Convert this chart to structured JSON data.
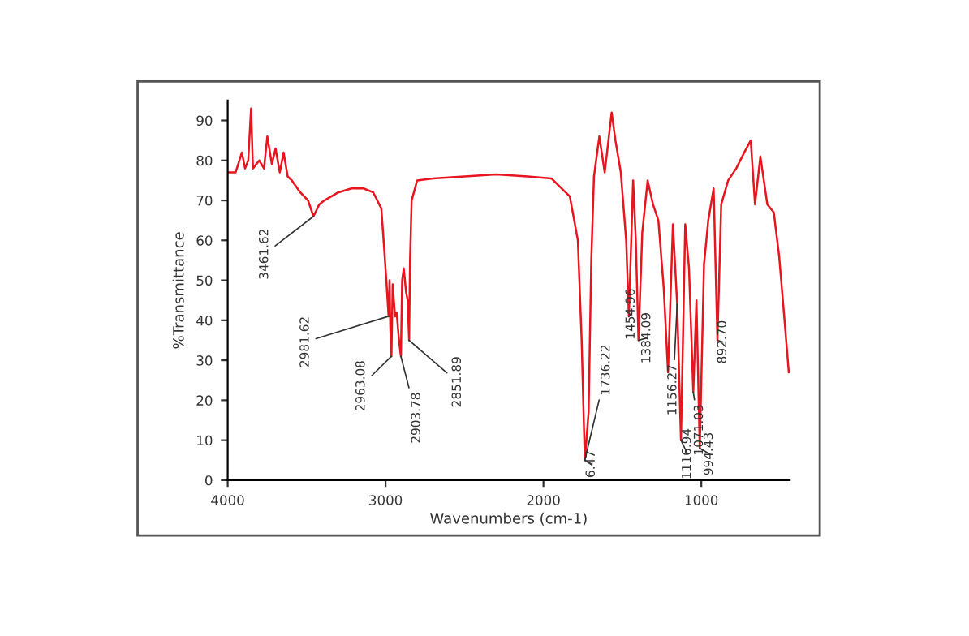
{
  "chart_data": {
    "type": "line",
    "xlabel": "Wavenumbers (cm-1)",
    "ylabel": "%Transmittance",
    "xlim": [
      4000,
      440
    ],
    "ylim": [
      0,
      95
    ],
    "xticks": [
      4000,
      3000,
      2000,
      1000
    ],
    "yticks": [
      0,
      10,
      20,
      30,
      40,
      50,
      60,
      70,
      80,
      90
    ],
    "grid": false,
    "marker": "none",
    "line_style": "solid",
    "series": [
      {
        "color": "#e8141e",
        "x": [
          4000,
          3950,
          3910,
          3890,
          3870,
          3852,
          3840,
          3800,
          3770,
          3749,
          3720,
          3697,
          3670,
          3646,
          3620,
          3594,
          3540,
          3491,
          3457,
          3420,
          3388,
          3300,
          3216,
          3140,
          3078,
          3027,
          3009,
          2992,
          2981,
          2975,
          2970,
          2963,
          2955,
          2940,
          2930,
          2915,
          2903,
          2895,
          2885,
          2870,
          2860,
          2851,
          2845,
          2835,
          2800,
          2700,
          2500,
          2300,
          2100,
          1950,
          1833,
          1782,
          1758,
          1738,
          1714,
          1697,
          1680,
          1646,
          1612,
          1568,
          1544,
          1510,
          1476,
          1459,
          1432,
          1415,
          1398,
          1374,
          1340,
          1306,
          1272,
          1238,
          1211,
          1180,
          1153,
          1129,
          1102,
          1078,
          1051,
          1031,
          1010,
          983,
          956,
          922,
          898,
          874,
          830,
          779,
          728,
          687,
          660,
          626,
          582,
          541,
          507,
          473,
          446
        ],
        "values": [
          77,
          77,
          82,
          78,
          80,
          93,
          78,
          80,
          78,
          86,
          79,
          83,
          77,
          82,
          76,
          75,
          72,
          70,
          66,
          69,
          70,
          72,
          73,
          73,
          72,
          68,
          58,
          48,
          41,
          50,
          38,
          31,
          49,
          41,
          42,
          35,
          31,
          50,
          53,
          47,
          45,
          35,
          55,
          70,
          75,
          75.5,
          76,
          76.5,
          76,
          75.5,
          71,
          60,
          35,
          5,
          17,
          55,
          76,
          86,
          77,
          92,
          85,
          77,
          60,
          41,
          75,
          60,
          35,
          62,
          75,
          69,
          65,
          48,
          27,
          64,
          44,
          10,
          64,
          53,
          22,
          45,
          8,
          54,
          65,
          73,
          35,
          69,
          75,
          78,
          82,
          85,
          69,
          81,
          69,
          67,
          56,
          40,
          27
        ]
      }
    ],
    "annotations": [
      {
        "text": "3461.62",
        "x": 3457,
        "y": 66
      },
      {
        "text": "2981.62",
        "x": 2981,
        "y": 41
      },
      {
        "text": "2963.08",
        "x": 2963,
        "y": 31
      },
      {
        "text": "2903.78",
        "x": 2903,
        "y": 31
      },
      {
        "text": "2851.89",
        "x": 2851,
        "y": 35
      },
      {
        "text": "1736.22",
        "x": 1738,
        "y": 5
      },
      {
        "text": "6.47",
        "x": 1738,
        "y": 5
      },
      {
        "text": "1454.96",
        "x": 1459,
        "y": 41
      },
      {
        "text": "1384.09",
        "x": 1398,
        "y": 35
      },
      {
        "text": "1156.27",
        "x": 1153,
        "y": 44
      },
      {
        "text": "1116.94",
        "x": 1129,
        "y": 10
      },
      {
        "text": "1071.03",
        "x": 1051,
        "y": 22
      },
      {
        "text": "994.43",
        "x": 1010,
        "y": 8
      },
      {
        "text": "892.70",
        "x": 898,
        "y": 35
      }
    ]
  }
}
